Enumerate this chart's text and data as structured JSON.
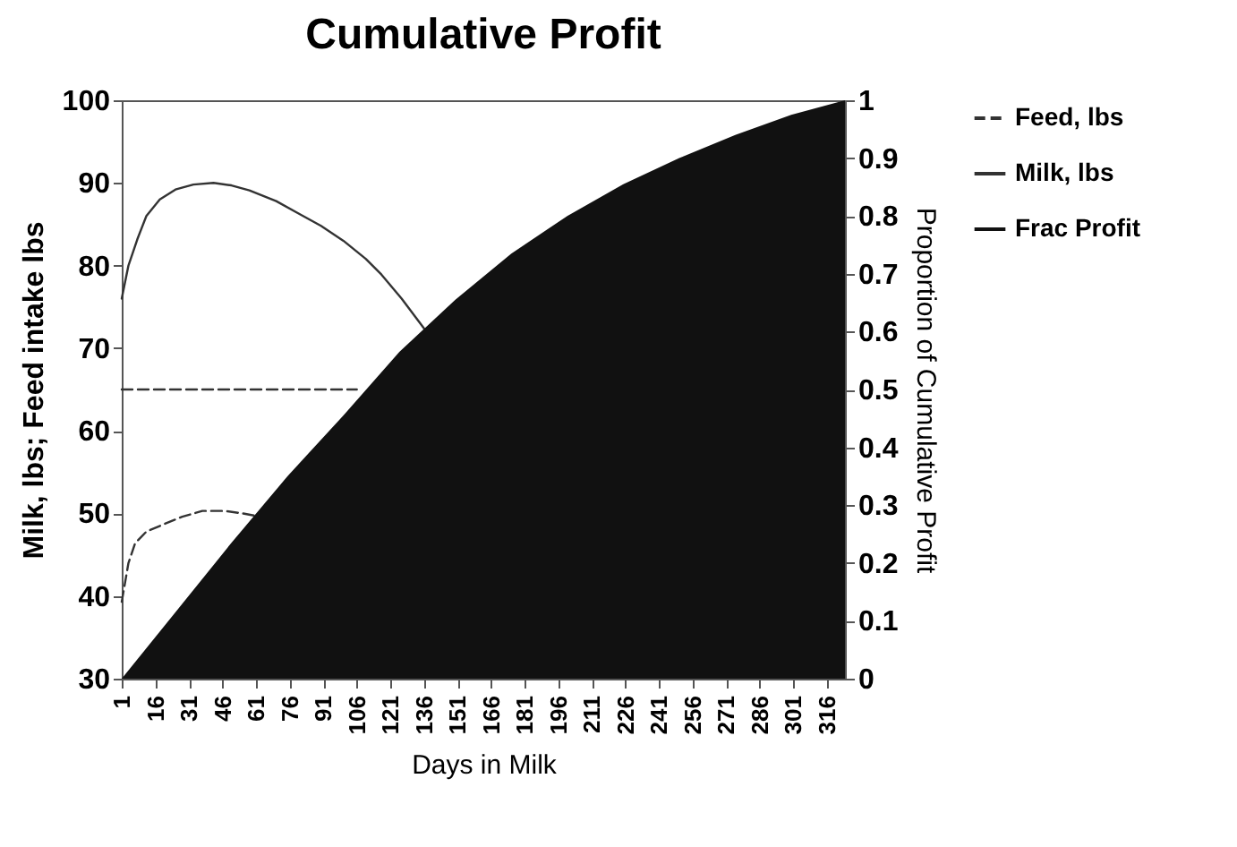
{
  "chart_data": {
    "type": "line",
    "title": "Cumulative Profit",
    "xlabel": "Days in Milk",
    "ylabel": "Milk, lbs; Feed intake lbs",
    "y2label": "Proportion of Cumulative Profit",
    "xlim": [
      1,
      324
    ],
    "xticks": [
      1,
      16,
      31,
      46,
      61,
      76,
      91,
      106,
      121,
      136,
      151,
      166,
      181,
      196,
      211,
      226,
      241,
      256,
      271,
      286,
      301,
      316
    ],
    "ylim": [
      30,
      100
    ],
    "yticks": [
      30,
      40,
      50,
      60,
      70,
      80,
      90,
      100
    ],
    "y2lim": [
      0,
      1
    ],
    "y2ticks": [
      0,
      0.1,
      0.2,
      0.3,
      0.4,
      0.5,
      0.6,
      0.7,
      0.8,
      0.9,
      1
    ],
    "legend": "right",
    "grid": false,
    "series": [
      {
        "name": "Feed, lbs",
        "line_style": "dashed",
        "color": "#333333",
        "x": [
          1,
          4,
          7,
          12,
          19,
          28,
          37,
          47,
          55,
          61
        ],
        "values": [
          39.3,
          44,
          46.4,
          47.8,
          48.6,
          49.6,
          50.3,
          50.3,
          50,
          49.7
        ]
      },
      {
        "name": "Milk, lbs",
        "line_style": "solid",
        "color": "#333333",
        "x": [
          1,
          4,
          8,
          12,
          18,
          25,
          33,
          42,
          50,
          58,
          70,
          80,
          90,
          100,
          110,
          117,
          126,
          136
        ],
        "values": [
          76,
          80,
          83.2,
          86,
          88,
          89.2,
          89.8,
          90,
          89.7,
          89.1,
          87.8,
          86.3,
          84.8,
          83,
          80.8,
          78.9,
          76,
          72.4
        ]
      },
      {
        "line_style": "dashed",
        "color": "#333333",
        "x": [
          1,
          106
        ],
        "values": [
          65,
          65
        ]
      },
      {
        "name": "Frac Profit",
        "type": "area",
        "axis": "y2",
        "color": "#111111",
        "x": [
          1,
          25,
          50,
          75,
          100,
          125,
          150,
          175,
          200,
          225,
          250,
          275,
          300,
          324
        ],
        "values": [
          0,
          0.115,
          0.235,
          0.35,
          0.455,
          0.565,
          0.655,
          0.735,
          0.8,
          0.855,
          0.9,
          0.94,
          0.975,
          1
        ]
      }
    ]
  }
}
